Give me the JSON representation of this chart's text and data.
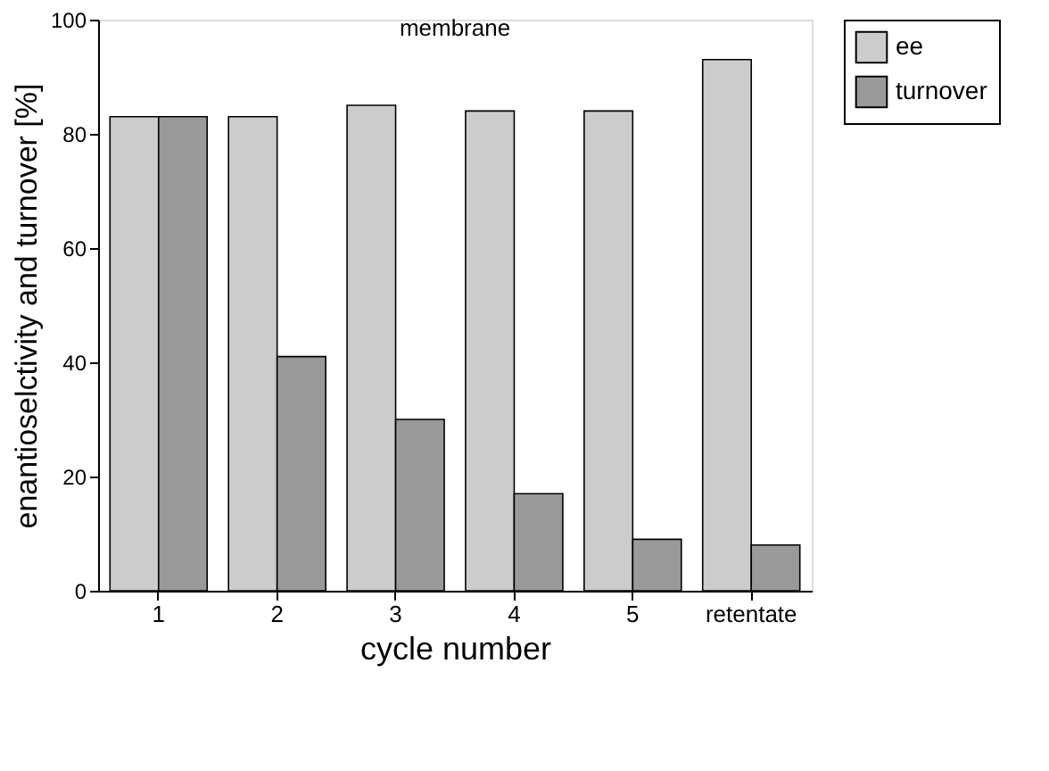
{
  "chart_data": {
    "type": "bar",
    "title": "membrane",
    "xlabel": "cycle number",
    "ylabel": "enantioselctivity and turnover [%]",
    "categories": [
      "1",
      "2",
      "3",
      "4",
      "5",
      "retentate"
    ],
    "series": [
      {
        "name": "ee",
        "color": "#cccccc",
        "values": [
          83,
          83,
          85,
          84,
          84,
          93
        ]
      },
      {
        "name": "turnover",
        "color": "#999999",
        "values": [
          83,
          41,
          30,
          17,
          9,
          8
        ]
      }
    ],
    "ylim": [
      0,
      100
    ],
    "yticks": [
      0,
      20,
      40,
      60,
      80,
      100
    ],
    "grid": false,
    "legend": "top right"
  }
}
